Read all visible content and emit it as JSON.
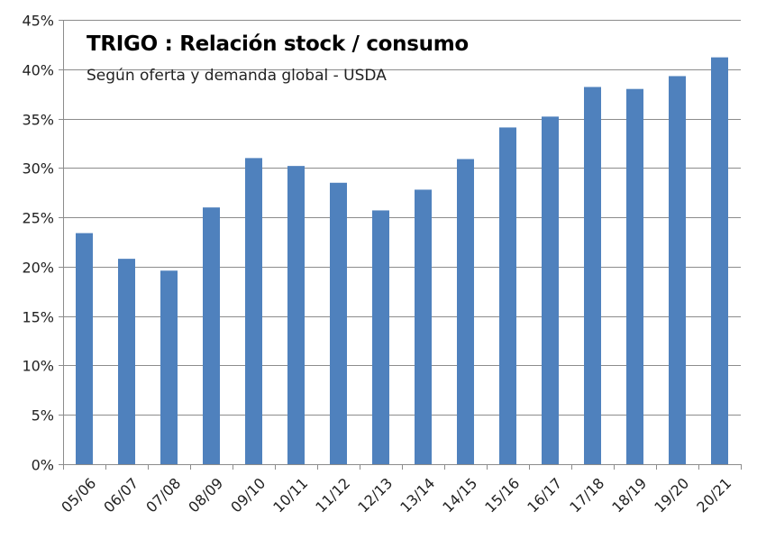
{
  "chart_data": {
    "type": "bar",
    "title": "TRIGO : Relación stock / consumo",
    "subtitle": "Según oferta y demanda global - USDA",
    "xlabel": "",
    "ylabel": "",
    "categories": [
      "05/06",
      "06/07",
      "07/08",
      "08/09",
      "09/10",
      "10/11",
      "11/12",
      "12/13",
      "13/14",
      "14/15",
      "15/16",
      "16/17",
      "17/18",
      "18/19",
      "19/20",
      "20/21"
    ],
    "values": [
      23.4,
      20.8,
      19.6,
      26.0,
      31.0,
      30.2,
      28.5,
      25.7,
      27.8,
      30.9,
      34.1,
      35.2,
      38.2,
      38.0,
      39.3,
      41.2
    ],
    "unit": "%",
    "ylim": [
      0,
      45
    ],
    "yticks": [
      "0%",
      "5%",
      "10%",
      "15%",
      "20%",
      "25%",
      "30%",
      "35%",
      "40%",
      "45%"
    ],
    "grid": true,
    "legend": "none",
    "bar_color": "#4f81bd"
  }
}
